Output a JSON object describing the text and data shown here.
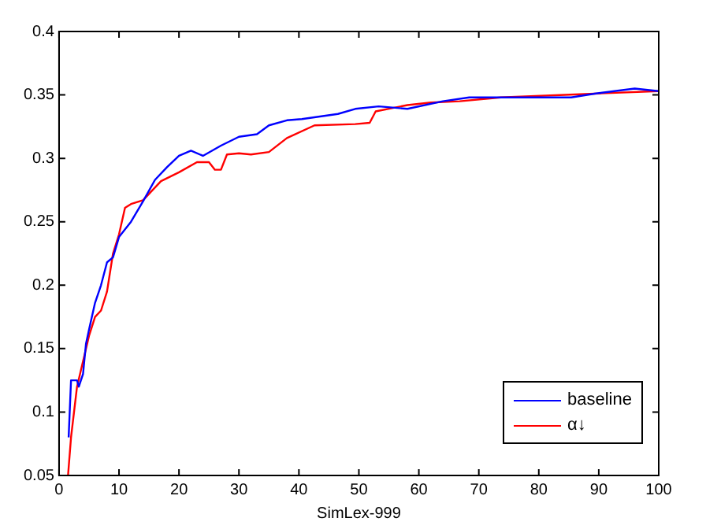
{
  "chart_data": {
    "type": "line",
    "xlabel": "SimLex-999",
    "xlim": [
      0,
      100
    ],
    "xticks": [
      0,
      10,
      20,
      30,
      40,
      50,
      60,
      70,
      80,
      90,
      100
    ],
    "ylim": [
      0.05,
      0.4
    ],
    "yticks": [
      0.05,
      0.1,
      0.15,
      0.2,
      0.25,
      0.3,
      0.35,
      0.4
    ],
    "grid": false,
    "legend": "bottom right",
    "marker": "none",
    "line_style": "solid",
    "series": [
      {
        "name": "baseline",
        "color": "#0000ff",
        "x": [
          1.6,
          2,
          3,
          3.3,
          4,
          4.5,
          5,
          6,
          7,
          8,
          9,
          10,
          12,
          14,
          16,
          18,
          20,
          22,
          24,
          27,
          30,
          33,
          35,
          38,
          40.5,
          46.5,
          49.4,
          53.3,
          58.1,
          64,
          68.4,
          73.7,
          85.4,
          89.3,
          96,
          100
        ],
        "values": [
          0.08,
          0.125,
          0.125,
          0.12,
          0.13,
          0.154,
          0.165,
          0.186,
          0.2,
          0.218,
          0.222,
          0.238,
          0.25,
          0.266,
          0.283,
          0.293,
          0.302,
          0.306,
          0.302,
          0.31,
          0.317,
          0.319,
          0.326,
          0.33,
          0.331,
          0.335,
          0.339,
          0.341,
          0.339,
          0.345,
          0.348,
          0.348,
          0.348,
          0.351,
          0.355,
          0.353
        ]
      },
      {
        "name": "α↓",
        "color": "#ff0000",
        "x": [
          1.5,
          2,
          2.5,
          3,
          4,
          5,
          6,
          7,
          8,
          9,
          10,
          11,
          12,
          14,
          17,
          20,
          23,
          25,
          26,
          27,
          28,
          30,
          32,
          35,
          38,
          42.6,
          49.4,
          51.8,
          52.8,
          58.1,
          62,
          66.8,
          73.7,
          89.3,
          100
        ],
        "values": [
          0.05,
          0.08,
          0.1,
          0.12,
          0.14,
          0.16,
          0.175,
          0.18,
          0.195,
          0.225,
          0.24,
          0.261,
          0.264,
          0.267,
          0.282,
          0.289,
          0.297,
          0.297,
          0.291,
          0.291,
          0.303,
          0.304,
          0.303,
          0.305,
          0.316,
          0.326,
          0.327,
          0.328,
          0.337,
          0.342,
          0.344,
          0.345,
          0.348,
          0.351,
          0.353
        ]
      }
    ]
  }
}
